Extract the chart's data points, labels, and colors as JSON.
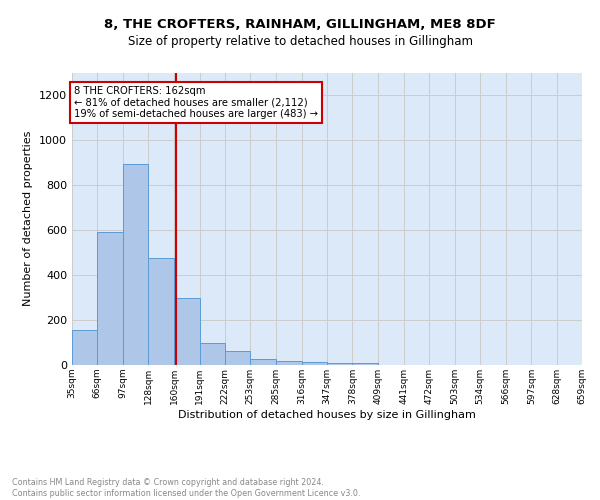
{
  "title1": "8, THE CROFTERS, RAINHAM, GILLINGHAM, ME8 8DF",
  "title2": "Size of property relative to detached houses in Gillingham",
  "xlabel": "Distribution of detached houses by size in Gillingham",
  "ylabel": "Number of detached properties",
  "bar_edges": [
    35,
    66,
    97,
    128,
    160,
    191,
    222,
    253,
    285,
    316,
    347,
    378,
    409,
    441,
    472,
    503,
    534,
    566,
    597,
    628,
    659
  ],
  "bar_heights": [
    155,
    590,
    895,
    475,
    300,
    100,
    62,
    27,
    20,
    12,
    10,
    10,
    0,
    0,
    0,
    0,
    0,
    0,
    0,
    0
  ],
  "bar_color": "#aec6e8",
  "bar_edge_color": "#5b9bd5",
  "property_line_x": 162,
  "annotation_text": "8 THE CROFTERS: 162sqm\n← 81% of detached houses are smaller (2,112)\n19% of semi-detached houses are larger (483) →",
  "annotation_box_color": "#ffffff",
  "annotation_box_edge": "#cc0000",
  "vline_color": "#cc0000",
  "grid_color": "#cccccc",
  "background_color": "#dce9f8",
  "yticks": [
    0,
    200,
    400,
    600,
    800,
    1000,
    1200
  ],
  "ylim": [
    0,
    1300
  ],
  "footer_line1": "Contains HM Land Registry data © Crown copyright and database right 2024.",
  "footer_line2": "Contains public sector information licensed under the Open Government Licence v3.0.",
  "tick_labels": [
    "35sqm",
    "66sqm",
    "97sqm",
    "128sqm",
    "160sqm",
    "191sqm",
    "222sqm",
    "253sqm",
    "285sqm",
    "316sqm",
    "347sqm",
    "378sqm",
    "409sqm",
    "441sqm",
    "472sqm",
    "503sqm",
    "534sqm",
    "566sqm",
    "597sqm",
    "628sqm",
    "659sqm"
  ]
}
